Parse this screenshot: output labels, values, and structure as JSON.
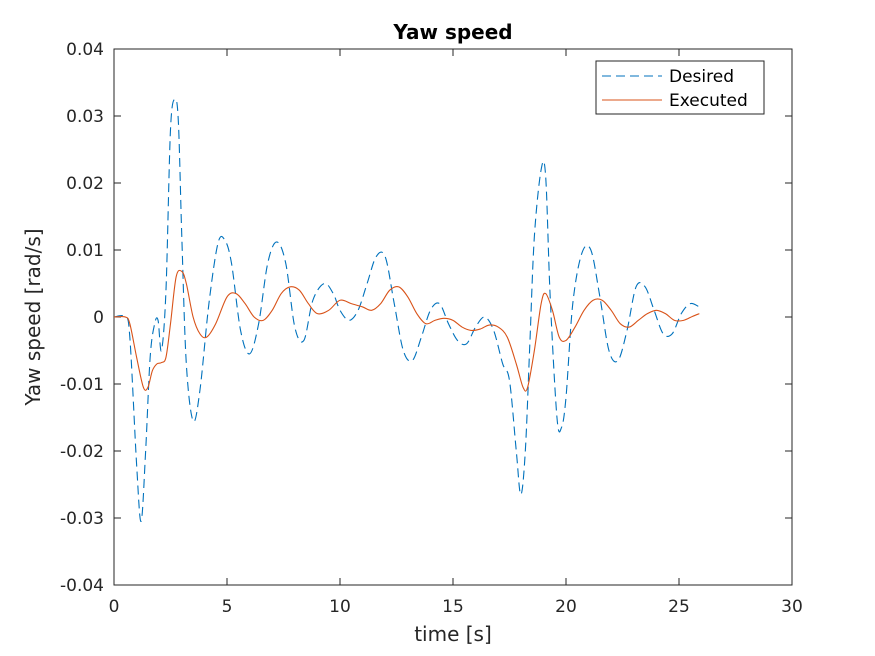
{
  "chart_data": {
    "type": "line",
    "title": "Yaw speed",
    "xlabel": "time [s]",
    "ylabel": "Yaw speed [rad/s]",
    "xlim": [
      0,
      30
    ],
    "ylim": [
      -0.04,
      0.04
    ],
    "xticks": [
      0,
      5,
      10,
      15,
      20,
      25,
      30
    ],
    "yticks": [
      -0.04,
      -0.03,
      -0.02,
      -0.01,
      0,
      0.01,
      0.02,
      0.03,
      0.04
    ],
    "xtick_labels": [
      "0",
      "5",
      "10",
      "15",
      "20",
      "25",
      "30"
    ],
    "ytick_labels": [
      "-0.04",
      "-0.03",
      "-0.02",
      "-0.01",
      "0",
      "0.01",
      "0.02",
      "0.03",
      "0.04"
    ],
    "grid": false,
    "legend_position": "top-right",
    "series": [
      {
        "name": "Desired",
        "color": "#0072BD",
        "style": "dashed",
        "x": [
          0,
          0.5,
          0.7,
          1.0,
          1.2,
          1.4,
          1.6,
          1.8,
          1.95,
          2.1,
          2.3,
          2.5,
          2.7,
          2.85,
          3.0,
          3.2,
          3.5,
          3.8,
          4.2,
          4.6,
          4.9,
          5.2,
          5.6,
          6.0,
          6.4,
          6.8,
          7.2,
          7.6,
          8.0,
          8.4,
          8.8,
          9.3,
          9.7,
          10.0,
          10.4,
          10.8,
          11.2,
          11.6,
          12.0,
          12.4,
          12.8,
          13.2,
          13.6,
          14.0,
          14.4,
          14.8,
          15.2,
          15.6,
          16.0,
          16.4,
          16.8,
          17.2,
          17.5,
          17.8,
          18.0,
          18.2,
          18.4,
          18.6,
          18.9,
          19.1,
          19.3,
          19.6,
          19.8,
          20.0,
          20.3,
          20.7,
          21.1,
          21.5,
          21.9,
          22.3,
          22.7,
          23.1,
          23.5,
          23.9,
          24.3,
          24.7,
          25.1,
          25.5,
          25.9
        ],
        "values": [
          0,
          0,
          -0.003,
          -0.022,
          -0.0305,
          -0.02,
          -0.006,
          -0.001,
          -0.0005,
          -0.005,
          0.004,
          0.028,
          0.0325,
          0.029,
          0.012,
          -0.007,
          -0.0155,
          -0.011,
          0.002,
          0.011,
          0.0115,
          0.008,
          -0.002,
          -0.0055,
          -0.001,
          0.008,
          0.0112,
          0.008,
          -0.0015,
          -0.0035,
          0.0025,
          0.005,
          0.0035,
          0.001,
          -0.0005,
          0.001,
          0.005,
          0.009,
          0.009,
          0.002,
          -0.005,
          -0.0065,
          -0.003,
          0.001,
          0.002,
          -0.001,
          -0.0035,
          -0.004,
          -0.0015,
          0,
          -0.002,
          -0.007,
          -0.0095,
          -0.02,
          -0.0265,
          -0.02,
          -0.004,
          0.012,
          0.022,
          0.021,
          0.003,
          -0.015,
          -0.0165,
          -0.012,
          0.002,
          0.0095,
          0.01,
          0.003,
          -0.005,
          -0.0065,
          -0.002,
          0.0045,
          0.0045,
          0.001,
          -0.0025,
          -0.0025,
          0.0005,
          0.002,
          0.0015
        ]
      },
      {
        "name": "Executed",
        "color": "#D95319",
        "style": "solid",
        "x": [
          0,
          0.5,
          0.7,
          1.0,
          1.3,
          1.5,
          1.7,
          1.9,
          2.1,
          2.3,
          2.5,
          2.75,
          3.0,
          3.2,
          3.5,
          3.8,
          4.1,
          4.5,
          5.0,
          5.4,
          5.8,
          6.2,
          6.6,
          7.0,
          7.4,
          7.8,
          8.2,
          8.6,
          9.0,
          9.5,
          10.0,
          10.5,
          11.0,
          11.4,
          11.8,
          12.2,
          12.6,
          13.0,
          13.4,
          13.8,
          14.2,
          14.6,
          15.0,
          15.4,
          15.8,
          16.2,
          16.6,
          17.0,
          17.4,
          17.8,
          18.1,
          18.3,
          18.6,
          18.9,
          19.1,
          19.4,
          19.7,
          20.0,
          20.4,
          20.8,
          21.2,
          21.6,
          22.0,
          22.4,
          22.8,
          23.2,
          23.6,
          24.0,
          24.4,
          24.8,
          25.2,
          25.6,
          25.9
        ],
        "values": [
          0,
          0,
          -0.001,
          -0.006,
          -0.0105,
          -0.0105,
          -0.008,
          -0.007,
          -0.0068,
          -0.006,
          -0.001,
          0.006,
          0.0068,
          0.005,
          0.0,
          -0.0025,
          -0.003,
          -0.001,
          0.003,
          0.0035,
          0.002,
          0.0,
          -0.0005,
          0.001,
          0.0035,
          0.0045,
          0.004,
          0.002,
          0.0005,
          0.001,
          0.0025,
          0.002,
          0.0015,
          0.001,
          0.002,
          0.004,
          0.0045,
          0.003,
          0.0005,
          -0.001,
          -0.0005,
          -0.0002,
          -0.0005,
          -0.0015,
          -0.002,
          -0.0018,
          -0.0012,
          -0.0015,
          -0.003,
          -0.007,
          -0.0105,
          -0.0105,
          -0.005,
          0.002,
          0.0035,
          0.001,
          -0.003,
          -0.0035,
          -0.0015,
          0.001,
          0.0025,
          0.0025,
          0.001,
          -0.001,
          -0.0015,
          -0.0005,
          0.0005,
          0.001,
          0.0005,
          -0.0005,
          -0.0005,
          0.0001,
          0.0005
        ]
      }
    ]
  }
}
